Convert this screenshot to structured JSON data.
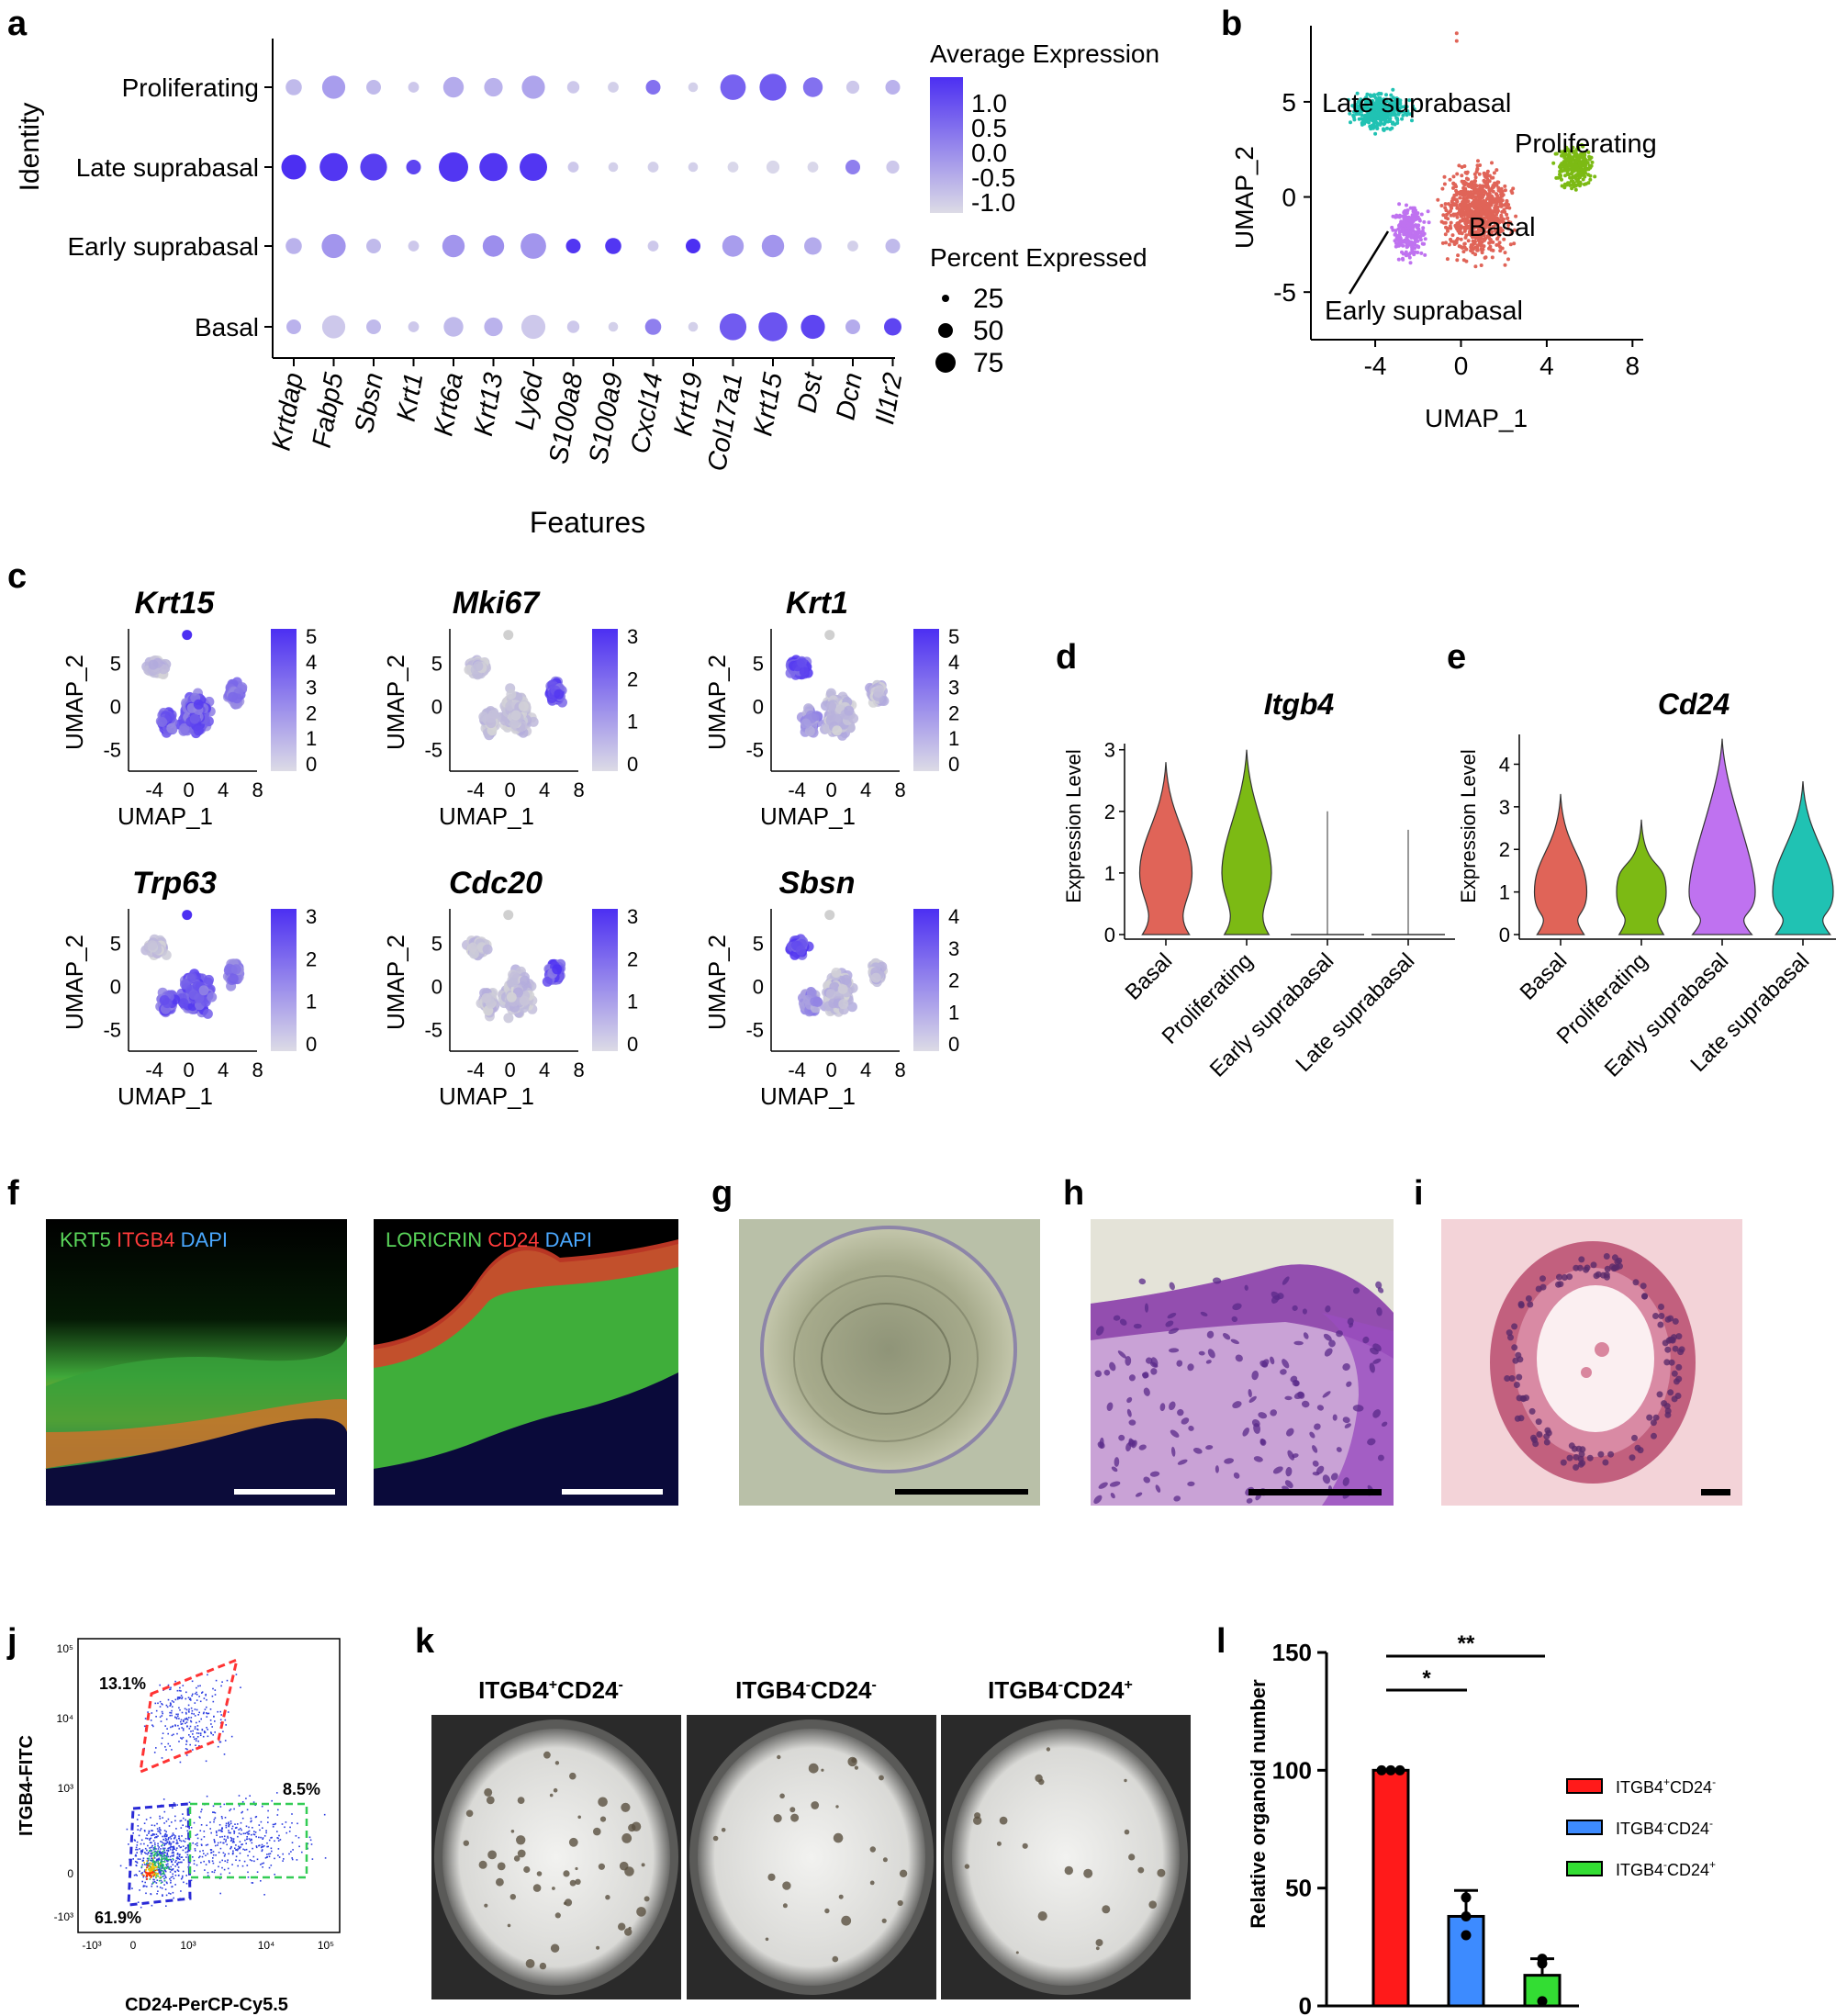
{
  "panels": {
    "a": {
      "label": "a",
      "chart_data": {
        "type": "dotplot",
        "ylabel": "Identity",
        "xlabel": "Features",
        "identities": [
          "Proliferating",
          "Late suprabasal",
          "Early suprabasal",
          "Basal"
        ],
        "features": [
          "Krtdap",
          "Fabp5",
          "Sbsn",
          "Krt1",
          "Krt6a",
          "Krt13",
          "Ly6d",
          "S100a8",
          "S100a9",
          "Cxcl14",
          "Krt19",
          "Col17a1",
          "Krt15",
          "Dst",
          "Dcn",
          "Il1r2"
        ],
        "avg_expression": [
          [
            -0.6,
            -0.2,
            -0.6,
            -0.8,
            -0.4,
            -0.5,
            -0.3,
            -0.8,
            -0.9,
            0.4,
            -0.9,
            0.6,
            0.7,
            0.4,
            -0.8,
            -0.5
          ],
          [
            1.3,
            1.2,
            1.1,
            1.0,
            1.2,
            1.2,
            1.2,
            -0.8,
            -0.9,
            -0.9,
            -0.9,
            -1.0,
            -1.0,
            -1.0,
            0.2,
            -0.8
          ],
          [
            -0.5,
            -0.1,
            -0.6,
            -0.8,
            -0.1,
            0.0,
            -0.1,
            1.2,
            1.2,
            -0.8,
            1.3,
            -0.2,
            -0.1,
            -0.4,
            -0.9,
            -0.6
          ],
          [
            -0.5,
            -0.8,
            -0.6,
            -0.8,
            -0.6,
            -0.5,
            -0.8,
            -0.8,
            -0.9,
            0.2,
            -0.9,
            0.7,
            0.8,
            1.0,
            -0.4,
            1.0
          ]
        ],
        "pct_expressed": [
          [
            20,
            55,
            15,
            5,
            40,
            30,
            55,
            8,
            5,
            15,
            3,
            70,
            80,
            35,
            10,
            15
          ],
          [
            65,
            90,
            80,
            15,
            100,
            90,
            85,
            5,
            3,
            5,
            3,
            5,
            10,
            5,
            15,
            10
          ],
          [
            20,
            60,
            15,
            5,
            50,
            45,
            70,
            15,
            20,
            5,
            15,
            45,
            50,
            25,
            5,
            15
          ],
          [
            15,
            55,
            15,
            5,
            35,
            30,
            60,
            8,
            3,
            20,
            3,
            80,
            95,
            60,
            15,
            25
          ]
        ],
        "color_legend": {
          "title": "Average Expression",
          "ticks": [
            "1.0",
            "0.5",
            "0.0",
            "-0.5",
            "-1.0"
          ],
          "low_color": "#d9d7ea",
          "high_color": "#4c2ff2"
        },
        "size_legend": {
          "title": "Percent Expressed",
          "values": [
            "25",
            "50",
            "75"
          ]
        }
      }
    },
    "b": {
      "label": "b",
      "chart_data": {
        "type": "scatter",
        "xlabel": "UMAP_1",
        "ylabel": "UMAP_2",
        "xticks": [
          "-4",
          "0",
          "4",
          "8"
        ],
        "yticks": [
          "5",
          "0",
          "-5"
        ],
        "xlim": [
          -7,
          8.5
        ],
        "ylim": [
          -7.5,
          9
        ],
        "clusters": [
          {
            "name": "Late suprabasal",
            "color": "#20c2b3",
            "center": [
              -3.8,
              4.5
            ],
            "spread": [
              1.4,
              1.0
            ],
            "n": 380
          },
          {
            "name": "Proliferating",
            "color": "#7cba14",
            "center": [
              5.3,
              1.6
            ],
            "spread": [
              0.9,
              1.4
            ],
            "n": 260
          },
          {
            "name": "Basal",
            "color": "#e06458",
            "center": [
              0.8,
              -0.8
            ],
            "spread": [
              1.8,
              2.6
            ],
            "n": 850
          },
          {
            "name": "Early suprabasal",
            "color": "#bf72f0",
            "center": [
              -2.4,
              -1.8
            ],
            "spread": [
              0.9,
              1.6
            ],
            "n": 260
          }
        ],
        "labels": [
          "Late suprabasal",
          "Proliferating",
          "Basal",
          "Early suprabasal"
        ]
      }
    },
    "c": {
      "label": "c",
      "chart_data": {
        "type": "feature_scatter",
        "xlabel": "UMAP_1",
        "ylabel": "UMAP_2",
        "xticks": [
          "-4",
          "0",
          "4",
          "8"
        ],
        "yticks": [
          "5",
          "0",
          "-5"
        ],
        "plots": [
          {
            "gene": "Krt15",
            "scale": [
              "5",
              "4",
              "3",
              "2",
              "1",
              "0"
            ],
            "pattern": "basal"
          },
          {
            "gene": "Mki67",
            "scale": [
              "3",
              "2",
              "1",
              "0"
            ],
            "pattern": "prolif"
          },
          {
            "gene": "Krt1",
            "scale": [
              "5",
              "4",
              "3",
              "2",
              "1",
              "0"
            ],
            "pattern": "late"
          },
          {
            "gene": "Trp63",
            "scale": [
              "3",
              "2",
              "1",
              "0"
            ],
            "pattern": "basal"
          },
          {
            "gene": "Cdc20",
            "scale": [
              "3",
              "2",
              "1",
              "0"
            ],
            "pattern": "prolif"
          },
          {
            "gene": "Sbsn",
            "scale": [
              "4",
              "3",
              "2",
              "1",
              "0"
            ],
            "pattern": "late"
          }
        ]
      }
    },
    "d": {
      "label": "d",
      "chart_data": {
        "type": "violin",
        "title": "Itgb4",
        "ylabel": "Expression Level",
        "yticks": [
          "0",
          "1",
          "2",
          "3"
        ],
        "ylim": [
          0,
          3.1
        ],
        "categories": [
          "Basal",
          "Proliferating",
          "Early suprabasal",
          "Late suprabasal"
        ],
        "colors": [
          "#e06458",
          "#7cba14",
          "#bf72f0",
          "#20c2b3"
        ],
        "max": [
          2.8,
          3.0,
          2.0,
          1.7
        ],
        "density_peak": [
          0.95,
          0.9,
          0.0,
          0.0
        ]
      }
    },
    "e": {
      "label": "e",
      "chart_data": {
        "type": "violin",
        "title": "Cd24",
        "ylabel": "Expression Level",
        "yticks": [
          "0",
          "1",
          "2",
          "3",
          "4"
        ],
        "ylim": [
          0,
          4.7
        ],
        "categories": [
          "Basal",
          "Proliferating",
          "Early suprabasal",
          "Late suprabasal"
        ],
        "colors": [
          "#e06458",
          "#7cba14",
          "#bf72f0",
          "#20c2b3"
        ],
        "max": [
          3.3,
          2.7,
          4.6,
          3.6
        ],
        "density_peak": [
          0.95,
          0.9,
          1.2,
          1.1
        ]
      }
    },
    "f": {
      "label": "f",
      "left_legend": [
        "KRT5",
        "ITGB4",
        "DAPI"
      ],
      "right_legend": [
        "LORICRIN",
        "CD24",
        "DAPI"
      ],
      "legend_colors": [
        "#5ad65a",
        "#ff3b3b",
        "#4aa8ff"
      ]
    },
    "g": {
      "label": "g"
    },
    "h": {
      "label": "h"
    },
    "i": {
      "label": "i"
    },
    "j": {
      "label": "j",
      "xlabel": "CD24-PerCP-Cy5.5",
      "ylabel": "ITGB4-FITC",
      "gates": [
        {
          "pct": "13.1%",
          "color": "#ff3333"
        },
        {
          "pct": "61.9%",
          "color": "#2a2ad6"
        },
        {
          "pct": "8.5%",
          "color": "#33cc55"
        }
      ],
      "xticks": [
        "-10³",
        "0",
        "10³",
        "10⁴",
        "10⁵"
      ],
      "yticks": [
        "10⁵",
        "10⁴",
        "10³",
        "0",
        "-10³"
      ]
    },
    "k": {
      "label": "k",
      "wells": [
        {
          "base1": "ITGB4",
          "sup1": "+",
          "base2": "CD24",
          "sup2": "-",
          "colonies": 55
        },
        {
          "base1": "ITGB4",
          "sup1": "-",
          "base2": "CD24",
          "sup2": "-",
          "colonies": 30
        },
        {
          "base1": "ITGB4",
          "sup1": "-",
          "base2": "CD24",
          "sup2": "+",
          "colonies": 22
        }
      ]
    },
    "l": {
      "label": "l",
      "chart_data": {
        "type": "bar",
        "ylabel": "Relative organoid number",
        "yticks": [
          "0",
          "50",
          "100",
          "150"
        ],
        "ylim": [
          0,
          150
        ],
        "categories": [
          "ITGB4+CD24-",
          "ITGB4-CD24-",
          "ITGB4-CD24+"
        ],
        "values": [
          100,
          38,
          13
        ],
        "errors": [
          0,
          11,
          7
        ],
        "points": [
          [
            100,
            100,
            100
          ],
          [
            46,
            30,
            38
          ],
          [
            20,
            18,
            2
          ]
        ],
        "colors": [
          "#ff1a1a",
          "#3d8bff",
          "#33dd33"
        ],
        "significance": [
          "*",
          "**"
        ],
        "legend": [
          {
            "base1": "ITGB4",
            "sup1": "+",
            "base2": "CD24",
            "sup2": "-"
          },
          {
            "base1": "ITGB4",
            "sup1": "-",
            "base2": "CD24",
            "sup2": "-"
          },
          {
            "base1": "ITGB4",
            "sup1": "-",
            "base2": "CD24",
            "sup2": "+"
          }
        ]
      }
    }
  }
}
